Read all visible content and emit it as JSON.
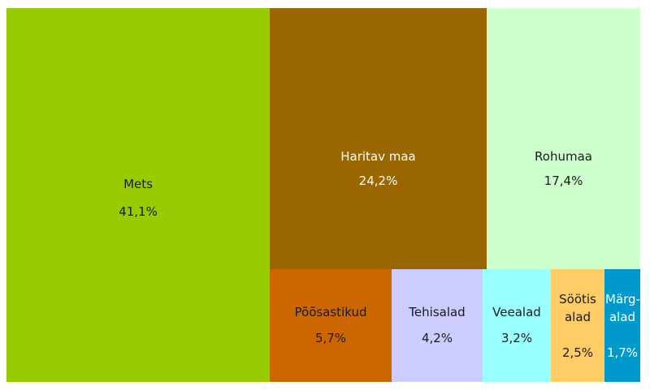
{
  "chart_data": {
    "type": "treemap",
    "items": [
      {
        "label": "Mets",
        "value_label": "41,1%",
        "value": 41.1,
        "color": "#99cc00",
        "text_color": "#1a1a1a"
      },
      {
        "label": "Haritav maa",
        "value_label": "24,2%",
        "value": 24.2,
        "color": "#996600",
        "text_color": "#ffffff"
      },
      {
        "label": "Rohumaa",
        "value_label": "17,4%",
        "value": 17.4,
        "color": "#ccffcc",
        "text_color": "#1a1a1a"
      },
      {
        "label": "Põõsastikud",
        "value_label": "5,7%",
        "value": 5.7,
        "color": "#cc6600",
        "text_color": "#1a1a1a"
      },
      {
        "label": "Tehisalad",
        "value_label": "4,2%",
        "value": 4.2,
        "color": "#ccccff",
        "text_color": "#1a1a1a"
      },
      {
        "label": "Veealad",
        "value_label": "3,2%",
        "value": 3.2,
        "color": "#99ffff",
        "text_color": "#1a1a1a"
      },
      {
        "label": "Söötis alad",
        "value_label": "2,5%",
        "value": 2.5,
        "color": "#ffcc66",
        "text_color": "#1a1a1a"
      },
      {
        "label": "Märg- alad",
        "value_label": "1,7%",
        "value": 1.7,
        "color": "#0099cc",
        "text_color": "#ffffff"
      }
    ]
  }
}
